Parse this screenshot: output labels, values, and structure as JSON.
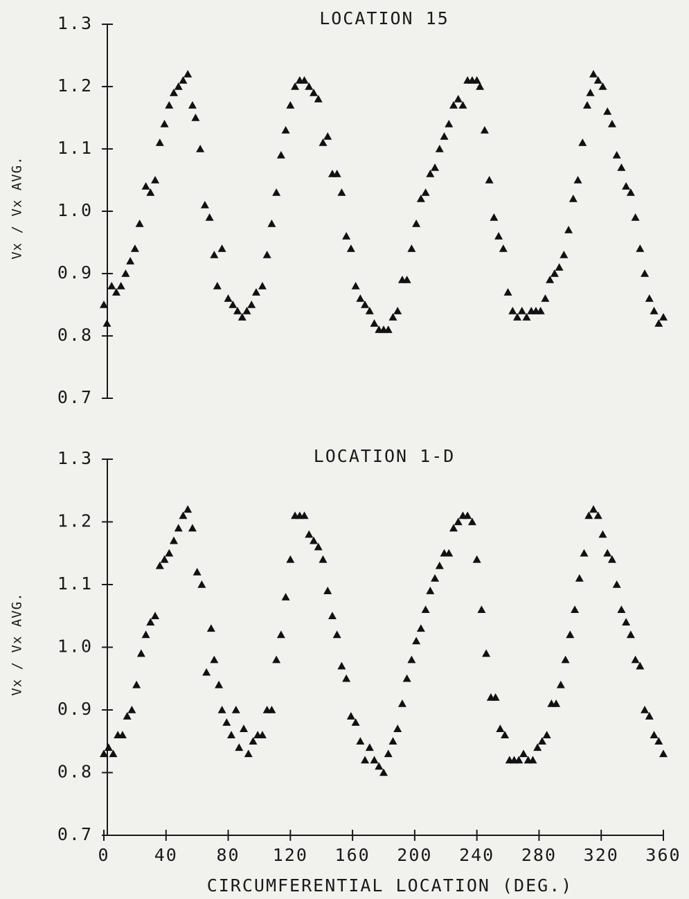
{
  "chart_data": [
    {
      "type": "scatter",
      "title": "LOCATION 15",
      "y_label": "Vx / Vx AVG.",
      "color": "#111111",
      "marker": "triangle",
      "xlim": [
        0,
        360
      ],
      "ylim": [
        0.7,
        1.3
      ],
      "yticks": [
        0.7,
        0.8,
        0.9,
        {
          "value": 1,
          "label": "1.0"
        },
        1.1,
        1.2,
        1.3
      ],
      "x": [
        0,
        2,
        5,
        8,
        11,
        14,
        17,
        20,
        23,
        27,
        30,
        33,
        36,
        39,
        42,
        45,
        48,
        51,
        54,
        57,
        59,
        62,
        65,
        68,
        71,
        73,
        76,
        80,
        83,
        86,
        89,
        92,
        95,
        98,
        102,
        105,
        108,
        111,
        114,
        117,
        120,
        123,
        126,
        129,
        132,
        135,
        138,
        141,
        144,
        147,
        150,
        153,
        156,
        159,
        162,
        165,
        168,
        171,
        174,
        177,
        180,
        183,
        186,
        189,
        192,
        195,
        198,
        201,
        204,
        207,
        210,
        213,
        216,
        219,
        222,
        225,
        228,
        231,
        234,
        237,
        240,
        242,
        245,
        248,
        251,
        254,
        257,
        260,
        263,
        266,
        269,
        272,
        275,
        278,
        281,
        284,
        287,
        290,
        293,
        296,
        299,
        302,
        305,
        308,
        311,
        313,
        315,
        318,
        321,
        324,
        327,
        330,
        333,
        336,
        339,
        342,
        345,
        348,
        351,
        354,
        357,
        360
      ],
      "values": [
        0.85,
        0.82,
        0.88,
        0.87,
        0.88,
        0.9,
        0.92,
        0.94,
        0.98,
        1.04,
        1.03,
        1.05,
        1.11,
        1.14,
        1.17,
        1.19,
        1.2,
        1.21,
        1.22,
        1.17,
        1.15,
        1.1,
        1.01,
        0.99,
        0.93,
        0.88,
        0.94,
        0.86,
        0.85,
        0.84,
        0.83,
        0.84,
        0.85,
        0.87,
        0.88,
        0.93,
        0.98,
        1.03,
        1.09,
        1.13,
        1.17,
        1.2,
        1.21,
        1.21,
        1.2,
        1.19,
        1.18,
        1.11,
        1.12,
        1.06,
        1.06,
        1.03,
        0.96,
        0.94,
        0.88,
        0.86,
        0.85,
        0.84,
        0.82,
        0.81,
        0.81,
        0.81,
        0.83,
        0.84,
        0.89,
        0.89,
        0.94,
        0.98,
        1.02,
        1.03,
        1.06,
        1.07,
        1.1,
        1.12,
        1.14,
        1.17,
        1.18,
        1.17,
        1.21,
        1.21,
        1.21,
        1.2,
        1.13,
        1.05,
        0.99,
        0.96,
        0.94,
        0.87,
        0.84,
        0.83,
        0.84,
        0.83,
        0.84,
        0.84,
        0.84,
        0.86,
        0.89,
        0.9,
        0.91,
        0.93,
        0.97,
        1.02,
        1.05,
        1.11,
        1.17,
        1.19,
        1.22,
        1.21,
        1.2,
        1.16,
        1.14,
        1.09,
        1.07,
        1.04,
        1.03,
        0.99,
        0.94,
        0.9,
        0.86,
        0.84,
        0.82,
        0.83
      ]
    },
    {
      "type": "scatter",
      "title": "LOCATION 1-D",
      "y_label": "Vx / Vx AVG.",
      "x_label": "CIRCUMFERENTIAL LOCATION   (DEG.)",
      "color": "#111111",
      "marker": "triangle",
      "xlim": [
        0,
        360
      ],
      "ylim": [
        0.7,
        1.3
      ],
      "xticks": [
        0,
        40,
        80,
        120,
        160,
        200,
        240,
        280,
        320,
        360
      ],
      "yticks": [
        0.7,
        0.8,
        0.9,
        {
          "value": 1,
          "label": "1.0"
        },
        1.1,
        1.2,
        1.3
      ],
      "x": [
        0,
        3,
        6,
        9,
        12,
        15,
        18,
        21,
        24,
        27,
        30,
        33,
        36,
        39,
        42,
        45,
        48,
        51,
        54,
        57,
        60,
        63,
        66,
        69,
        71,
        74,
        76,
        79,
        82,
        85,
        87,
        90,
        93,
        96,
        99,
        102,
        105,
        108,
        111,
        114,
        117,
        120,
        123,
        126,
        129,
        132,
        135,
        138,
        141,
        144,
        147,
        150,
        153,
        156,
        159,
        162,
        165,
        168,
        171,
        174,
        177,
        180,
        183,
        186,
        189,
        192,
        195,
        198,
        201,
        204,
        207,
        210,
        213,
        216,
        219,
        222,
        225,
        228,
        231,
        234,
        237,
        240,
        243,
        246,
        249,
        252,
        255,
        258,
        261,
        264,
        267,
        270,
        273,
        276,
        279,
        282,
        285,
        288,
        291,
        294,
        297,
        300,
        303,
        306,
        309,
        312,
        315,
        318,
        321,
        324,
        327,
        330,
        333,
        336,
        339,
        342,
        345,
        348,
        351,
        354,
        357,
        360
      ],
      "values": [
        0.83,
        0.84,
        0.83,
        0.86,
        0.86,
        0.89,
        0.9,
        0.94,
        0.99,
        1.02,
        1.04,
        1.05,
        1.13,
        1.14,
        1.15,
        1.17,
        1.19,
        1.21,
        1.22,
        1.19,
        1.12,
        1.1,
        0.96,
        1.03,
        0.98,
        0.94,
        0.9,
        0.88,
        0.86,
        0.9,
        0.84,
        0.87,
        0.83,
        0.85,
        0.86,
        0.86,
        0.9,
        0.9,
        0.98,
        1.02,
        1.08,
        1.14,
        1.21,
        1.21,
        1.21,
        1.18,
        1.17,
        1.16,
        1.14,
        1.09,
        1.05,
        1.02,
        0.97,
        0.95,
        0.89,
        0.88,
        0.85,
        0.82,
        0.84,
        0.82,
        0.81,
        0.8,
        0.83,
        0.85,
        0.87,
        0.91,
        0.95,
        0.98,
        1.01,
        1.03,
        1.06,
        1.09,
        1.11,
        1.13,
        1.15,
        1.15,
        1.19,
        1.2,
        1.21,
        1.21,
        1.2,
        1.14,
        1.06,
        0.99,
        0.92,
        0.92,
        0.87,
        0.86,
        0.82,
        0.82,
        0.82,
        0.83,
        0.82,
        0.82,
        0.84,
        0.85,
        0.86,
        0.91,
        0.91,
        0.94,
        0.98,
        1.02,
        1.06,
        1.11,
        1.15,
        1.21,
        1.22,
        1.21,
        1.18,
        1.15,
        1.14,
        1.1,
        1.06,
        1.04,
        1.02,
        0.98,
        0.97,
        0.9,
        0.89,
        0.86,
        0.85,
        0.83
      ]
    }
  ]
}
